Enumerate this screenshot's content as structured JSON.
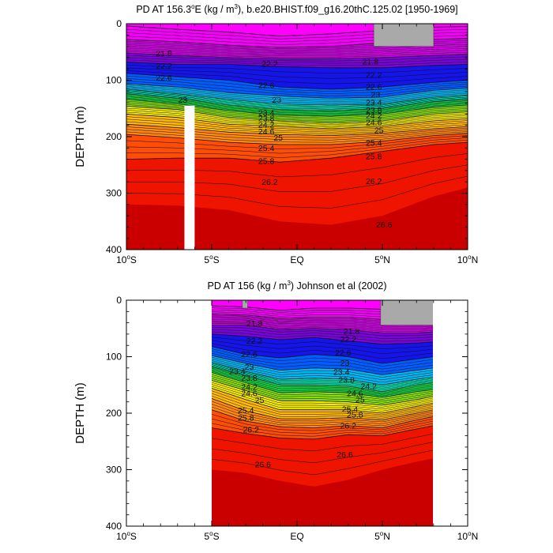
{
  "chart_data": [
    {
      "type": "heatmap",
      "title": "PD AT 156.3°E (kg / m³), b.e20.BHIST.f09_g16.20thC.125.02 [1950-1969]",
      "title_parts": {
        "pre": "PD AT 156.3",
        "deg": "o",
        "mid": "E (kg / m",
        "sup": "3",
        "post": "), b.e20.BHIST.f09_g16.20thC.125.02 [1950-1969]"
      },
      "xlabel": "",
      "ylabel": "DEPTH (m)",
      "xlim": [
        -10,
        10
      ],
      "ylim": [
        400,
        0
      ],
      "x_ticks": [
        {
          "value": -10,
          "label": "10",
          "deg": "o",
          "suffix": "S"
        },
        {
          "value": -5,
          "label": "5",
          "deg": "o",
          "suffix": "S"
        },
        {
          "value": 0,
          "label": "EQ",
          "deg": "",
          "suffix": ""
        },
        {
          "value": 5,
          "label": "5",
          "deg": "o",
          "suffix": "N"
        },
        {
          "value": 10,
          "label": "10",
          "deg": "o",
          "suffix": "N"
        }
      ],
      "y_ticks": [
        "0",
        "100",
        "200",
        "300",
        "400"
      ],
      "y_tick_values": [
        0,
        100,
        200,
        300,
        400
      ],
      "data_xlim": [
        -10,
        10
      ],
      "contour_levels": [
        20.6,
        20.8,
        21.0,
        21.2,
        21.4,
        21.6,
        21.8,
        22.0,
        22.2,
        22.4,
        22.6,
        22.8,
        23.0,
        23.2,
        23.4,
        23.6,
        23.8,
        24.0,
        24.2,
        24.4,
        24.6,
        24.8,
        25.0,
        25.2,
        25.4,
        25.6,
        25.8,
        26.0,
        26.2,
        26.4,
        26.6
      ],
      "isopycnals": [
        {
          "level": 20.6,
          "depth_at": {
            "-10": 4,
            "-7": 10,
            "-4": 15,
            "-1": 22,
            "2": 18,
            "5": 12,
            "8": 6,
            "10": 5
          }
        },
        {
          "level": 21.0,
          "depth_at": {
            "-10": 28,
            "-7": 32,
            "-4": 38,
            "-1": 42,
            "2": 40,
            "5": 34,
            "8": 28,
            "10": 26
          }
        },
        {
          "level": 21.8,
          "depth_at": {
            "-10": 52,
            "-7": 56,
            "-4": 60,
            "-1": 62,
            "2": 62,
            "5": 60,
            "8": 56,
            "10": 54
          }
        },
        {
          "level": 22.2,
          "depth_at": {
            "-10": 68,
            "-7": 72,
            "-4": 72,
            "-1": 76,
            "2": 78,
            "5": 78,
            "8": 74,
            "10": 72
          }
        },
        {
          "level": 22.6,
          "depth_at": {
            "-10": 88,
            "-7": 94,
            "-4": 100,
            "-1": 112,
            "2": 116,
            "5": 112,
            "8": 104,
            "10": 100
          }
        },
        {
          "level": 23.0,
          "depth_at": {
            "-10": 106,
            "-7": 112,
            "-4": 122,
            "-1": 128,
            "2": 132,
            "5": 130,
            "8": 118,
            "10": 114
          }
        },
        {
          "level": 23.4,
          "depth_at": {
            "-10": 116,
            "-7": 124,
            "-4": 134,
            "-1": 142,
            "2": 144,
            "5": 142,
            "8": 130,
            "10": 126
          }
        },
        {
          "level": 23.8,
          "depth_at": {
            "-10": 124,
            "-7": 132,
            "-4": 144,
            "-1": 152,
            "2": 154,
            "5": 150,
            "8": 138,
            "10": 134
          }
        },
        {
          "level": 24.2,
          "depth_at": {
            "-10": 134,
            "-7": 142,
            "-4": 154,
            "-1": 162,
            "2": 164,
            "5": 160,
            "8": 148,
            "10": 144
          }
        },
        {
          "level": 24.6,
          "depth_at": {
            "-10": 146,
            "-7": 152,
            "-4": 166,
            "-1": 172,
            "2": 176,
            "5": 172,
            "8": 160,
            "10": 156
          }
        },
        {
          "level": 25.0,
          "depth_at": {
            "-10": 160,
            "-7": 166,
            "-4": 178,
            "-1": 182,
            "2": 186,
            "5": 182,
            "8": 172,
            "10": 168
          }
        },
        {
          "level": 25.4,
          "depth_at": {
            "-10": 178,
            "-7": 184,
            "-4": 192,
            "-1": 196,
            "2": 198,
            "5": 194,
            "8": 186,
            "10": 182
          }
        },
        {
          "level": 25.8,
          "depth_at": {
            "-10": 196,
            "-7": 202,
            "-4": 210,
            "-1": 214,
            "2": 214,
            "5": 208,
            "8": 198,
            "10": 194
          }
        },
        {
          "level": 26.2,
          "depth_at": {
            "-10": 240,
            "-7": 238,
            "-4": 238,
            "-1": 245,
            "2": 238,
            "5": 226,
            "8": 214,
            "10": 210
          }
        },
        {
          "level": 26.6,
          "depth_at": {
            "-10": 320,
            "-7": 322,
            "-4": 330,
            "-1": 350,
            "2": 356,
            "5": 340,
            "8": 306,
            "10": 290
          }
        }
      ],
      "contour_labels": [
        {
          "text": "21.8",
          "x": -7.8,
          "y": 57
        },
        {
          "text": "22.2",
          "x": -7.8,
          "y": 80
        },
        {
          "text": "22.6",
          "x": -7.8,
          "y": 101
        },
        {
          "text": "23",
          "x": -6.7,
          "y": 140
        },
        {
          "text": "22.2",
          "x": -1.6,
          "y": 76
        },
        {
          "text": "22.6",
          "x": -1.8,
          "y": 114
        },
        {
          "text": "23",
          "x": -1.2,
          "y": 140
        },
        {
          "text": "23.4",
          "x": -1.8,
          "y": 163
        },
        {
          "text": "23.8",
          "x": -1.8,
          "y": 173
        },
        {
          "text": "24.2",
          "x": -1.8,
          "y": 184
        },
        {
          "text": "24.6",
          "x": -1.8,
          "y": 196
        },
        {
          "text": "25",
          "x": -1.1,
          "y": 207
        },
        {
          "text": "25.4",
          "x": -1.8,
          "y": 225
        },
        {
          "text": "25.8",
          "x": -1.8,
          "y": 248
        },
        {
          "text": "26.2",
          "x": -1.6,
          "y": 285
        },
        {
          "text": "21.8",
          "x": 4.3,
          "y": 72
        },
        {
          "text": "22.2",
          "x": 4.5,
          "y": 96
        },
        {
          "text": "22.6",
          "x": 4.5,
          "y": 117
        },
        {
          "text": "23",
          "x": 4.6,
          "y": 131
        },
        {
          "text": "23.4",
          "x": 4.5,
          "y": 145
        },
        {
          "text": "23.8",
          "x": 4.5,
          "y": 158
        },
        {
          "text": "24.2",
          "x": 4.5,
          "y": 168
        },
        {
          "text": "24.6",
          "x": 4.5,
          "y": 180
        },
        {
          "text": "25",
          "x": 4.8,
          "y": 194
        },
        {
          "text": "25.4",
          "x": 4.5,
          "y": 216
        },
        {
          "text": "25.8",
          "x": 4.5,
          "y": 240
        },
        {
          "text": "26.2",
          "x": 4.5,
          "y": 284
        },
        {
          "text": "26.6",
          "x": 5.1,
          "y": 361
        }
      ],
      "masks": [
        {
          "kind": "white",
          "x0": -6.6,
          "x1": -6.0,
          "y0": 145,
          "y1": 400
        },
        {
          "kind": "gray",
          "x0": 4.5,
          "x1": 8.0,
          "y0": 0,
          "y1": 40
        }
      ]
    },
    {
      "type": "heatmap",
      "title": "PD AT 156 (kg / m³) Johnson et al (2002)",
      "title_parts": {
        "pre": "PD AT 156 (kg / m",
        "sup": "3",
        "post": ") Johnson et al (2002)"
      },
      "xlabel": "",
      "ylabel": "DEPTH (m)",
      "xlim": [
        -10,
        10
      ],
      "ylim": [
        400,
        0
      ],
      "x_ticks": [
        {
          "value": -10,
          "label": "10",
          "deg": "o",
          "suffix": "S"
        },
        {
          "value": -5,
          "label": "5",
          "deg": "o",
          "suffix": "S"
        },
        {
          "value": 0,
          "label": "EQ",
          "deg": "",
          "suffix": ""
        },
        {
          "value": 5,
          "label": "5",
          "deg": "o",
          "suffix": "N"
        },
        {
          "value": 10,
          "label": "10",
          "deg": "o",
          "suffix": "N"
        }
      ],
      "y_ticks": [
        "0",
        "100",
        "200",
        "300",
        "400"
      ],
      "y_tick_values": [
        0,
        100,
        200,
        300,
        400
      ],
      "data_xlim": [
        -5,
        8
      ],
      "contour_levels": [
        20.6,
        20.8,
        21.0,
        21.2,
        21.4,
        21.6,
        21.8,
        22.0,
        22.2,
        22.4,
        22.6,
        22.8,
        23.0,
        23.2,
        23.4,
        23.6,
        23.8,
        24.0,
        24.2,
        24.4,
        24.6,
        24.8,
        25.0,
        25.2,
        25.4,
        25.6,
        25.8,
        26.0,
        26.2,
        26.4,
        26.6
      ],
      "isopycnals": [
        {
          "level": 20.6,
          "depth_at": {
            "-5": 10,
            "-3": 12,
            "-1": 18,
            "1": 14,
            "3": 14,
            "5": 16,
            "7": 18,
            "8": 20
          }
        },
        {
          "level": 21.0,
          "depth_at": {
            "-5": 24,
            "-3": 26,
            "-1": 32,
            "1": 30,
            "3": 30,
            "5": 34,
            "7": 36,
            "8": 36
          }
        },
        {
          "level": 21.8,
          "depth_at": {
            "-5": 44,
            "-3": 44,
            "-1": 52,
            "1": 50,
            "3": 52,
            "5": 58,
            "7": 58,
            "8": 56
          }
        },
        {
          "level": 22.2,
          "depth_at": {
            "-5": 60,
            "-3": 64,
            "-1": 70,
            "1": 66,
            "3": 72,
            "5": 78,
            "7": 76,
            "8": 74
          }
        },
        {
          "level": 22.6,
          "depth_at": {
            "-5": 82,
            "-3": 96,
            "-1": 102,
            "1": 96,
            "3": 100,
            "5": 112,
            "7": 104,
            "8": 100
          }
        },
        {
          "level": 23.0,
          "depth_at": {
            "-5": 98,
            "-3": 112,
            "-1": 124,
            "1": 120,
            "3": 122,
            "5": 132,
            "7": 124,
            "8": 120
          }
        },
        {
          "level": 23.4,
          "depth_at": {
            "-5": 110,
            "-3": 126,
            "-1": 140,
            "1": 138,
            "3": 140,
            "5": 150,
            "7": 140,
            "8": 136
          }
        },
        {
          "level": 23.8,
          "depth_at": {
            "-5": 118,
            "-3": 134,
            "-1": 150,
            "1": 150,
            "3": 152,
            "5": 162,
            "7": 150,
            "8": 146
          }
        },
        {
          "level": 24.2,
          "depth_at": {
            "-5": 128,
            "-3": 146,
            "-1": 164,
            "1": 162,
            "3": 164,
            "5": 172,
            "7": 162,
            "8": 158
          }
        },
        {
          "level": 24.6,
          "depth_at": {
            "-5": 142,
            "-3": 160,
            "-1": 178,
            "1": 178,
            "3": 180,
            "5": 186,
            "7": 176,
            "8": 170
          }
        },
        {
          "level": 25.0,
          "depth_at": {
            "-5": 156,
            "-3": 176,
            "-1": 194,
            "1": 194,
            "3": 194,
            "5": 200,
            "7": 188,
            "8": 182
          }
        },
        {
          "level": 25.4,
          "depth_at": {
            "-5": 174,
            "-3": 196,
            "-1": 210,
            "1": 210,
            "3": 208,
            "5": 212,
            "7": 200,
            "8": 194
          }
        },
        {
          "level": 25.8,
          "depth_at": {
            "-5": 194,
            "-3": 214,
            "-1": 224,
            "1": 226,
            "3": 222,
            "5": 226,
            "7": 212,
            "8": 206
          }
        },
        {
          "level": 26.2,
          "depth_at": {
            "-5": 226,
            "-3": 236,
            "-1": 244,
            "1": 246,
            "3": 238,
            "5": 240,
            "7": 228,
            "8": 222
          }
        },
        {
          "level": 26.6,
          "depth_at": {
            "-5": 300,
            "-3": 306,
            "-1": 320,
            "1": 330,
            "3": 318,
            "5": 300,
            "7": 286,
            "8": 280
          }
        }
      ],
      "contour_labels": [
        {
          "text": "21.8",
          "x": -2.5,
          "y": 46
        },
        {
          "text": "22.2",
          "x": -2.5,
          "y": 77
        },
        {
          "text": "22.6",
          "x": -2.8,
          "y": 101
        },
        {
          "text": "23",
          "x": -2.8,
          "y": 123
        },
        {
          "text": "23.4",
          "x": -3.5,
          "y": 131
        },
        {
          "text": "23.8",
          "x": -2.8,
          "y": 143
        },
        {
          "text": "24.2",
          "x": -2.8,
          "y": 159
        },
        {
          "text": "24.6",
          "x": -2.8,
          "y": 170
        },
        {
          "text": "25",
          "x": -2.2,
          "y": 182
        },
        {
          "text": "25.4",
          "x": -3.0,
          "y": 200
        },
        {
          "text": "25.8",
          "x": -3.0,
          "y": 213
        },
        {
          "text": "26.2",
          "x": -2.7,
          "y": 234
        },
        {
          "text": "26.6",
          "x": -2.0,
          "y": 296
        },
        {
          "text": "21.8",
          "x": 3.2,
          "y": 60
        },
        {
          "text": "22.2",
          "x": 3.0,
          "y": 74
        },
        {
          "text": "22.6",
          "x": 2.7,
          "y": 98
        },
        {
          "text": "23",
          "x": 2.8,
          "y": 116
        },
        {
          "text": "23.4",
          "x": 2.6,
          "y": 132
        },
        {
          "text": "23.8",
          "x": 2.9,
          "y": 146
        },
        {
          "text": "24.2",
          "x": 4.2,
          "y": 157
        },
        {
          "text": "24.6",
          "x": 3.4,
          "y": 170
        },
        {
          "text": "25",
          "x": 3.7,
          "y": 181
        },
        {
          "text": "25.4",
          "x": 3.1,
          "y": 198
        },
        {
          "text": "25.8",
          "x": 3.4,
          "y": 208
        },
        {
          "text": "26.2",
          "x": 3.0,
          "y": 227
        },
        {
          "text": "26.6",
          "x": 2.8,
          "y": 278
        }
      ],
      "masks": [
        {
          "kind": "gray",
          "x0": -3.2,
          "x1": -2.9,
          "y0": 0,
          "y1": 14
        },
        {
          "kind": "gray",
          "x0": 4.9,
          "x1": 8.0,
          "y0": 0,
          "y1": 44
        }
      ]
    }
  ]
}
